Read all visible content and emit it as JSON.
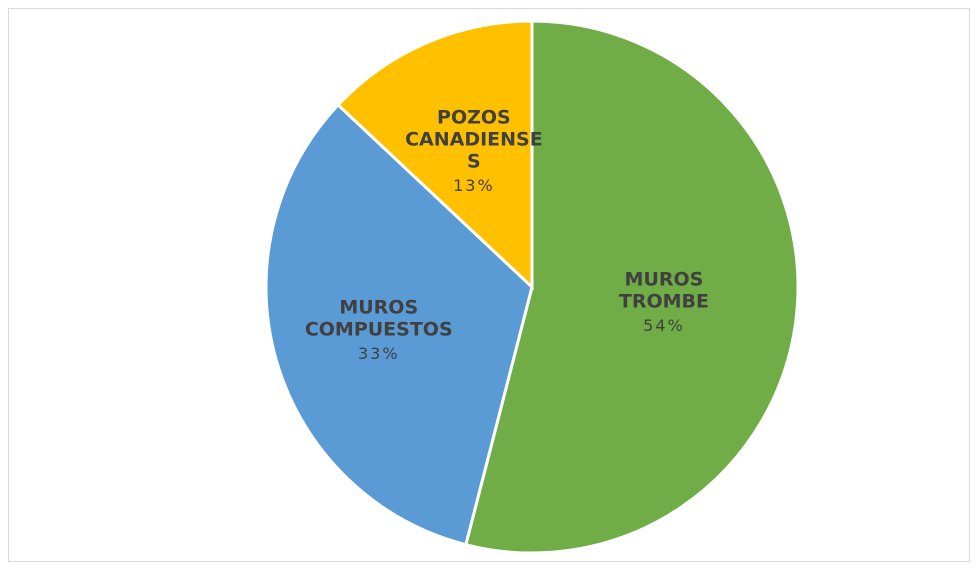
{
  "chart_data": {
    "type": "pie",
    "categories": [
      "MUROS TROMBE",
      "MUROS COMPUESTOS",
      "POZOS CANADIENSES"
    ],
    "values": [
      54,
      33,
      13
    ],
    "value_labels": [
      "54%",
      "33%",
      "13%"
    ],
    "colors": [
      "#70ad47",
      "#5b9bd5",
      "#ffc000"
    ]
  }
}
